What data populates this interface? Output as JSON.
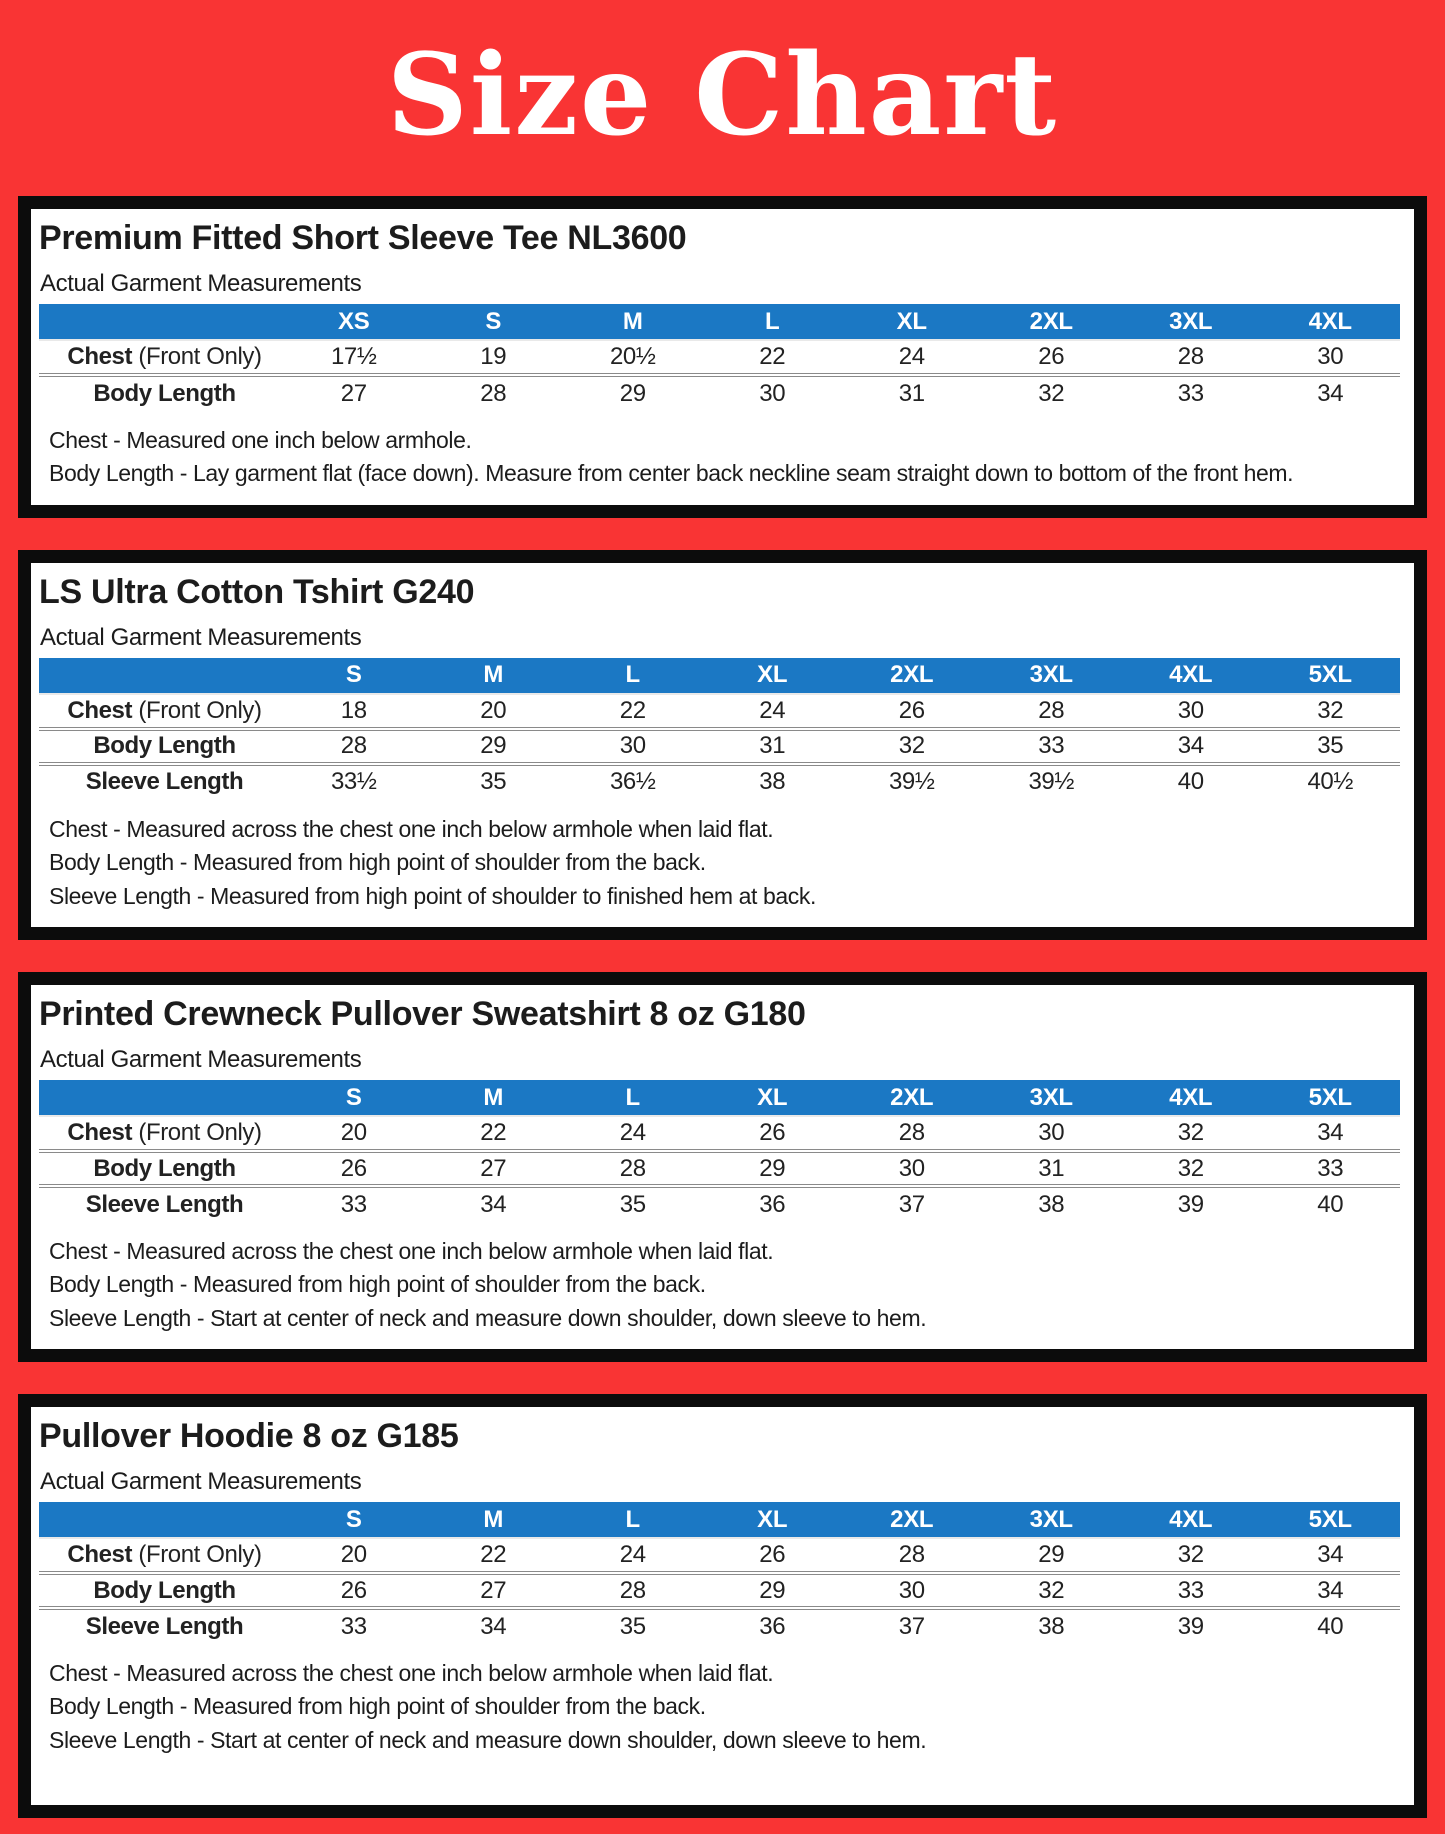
{
  "page": {
    "title": "Size Chart",
    "colors": {
      "background": "#F93434",
      "panel_border": "#0C0C0C",
      "header_bar": "#1B78C4",
      "title_text": "#FFFFFF"
    }
  },
  "panels": [
    {
      "title": "Premium Fitted Short Sleeve Tee NL3600",
      "subtitle": "Actual Garment Measurements",
      "sizes": [
        "XS",
        "S",
        "M",
        "L",
        "XL",
        "2XL",
        "3XL",
        "4XL"
      ],
      "rows": [
        {
          "label": "Chest",
          "label_note": "(Front Only)",
          "values": [
            "17½",
            "19",
            "20½",
            "22",
            "24",
            "26",
            "28",
            "30"
          ]
        },
        {
          "label": "Body Length",
          "label_note": "",
          "values": [
            "27",
            "28",
            "29",
            "30",
            "31",
            "32",
            "33",
            "34"
          ]
        }
      ],
      "notes": [
        "Chest - Measured one inch below armhole.",
        "Body Length - Lay garment flat (face down). Measure from center back neckline seam straight down to bottom of the front hem."
      ]
    },
    {
      "title": "LS Ultra Cotton Tshirt G240",
      "subtitle": "Actual Garment Measurements",
      "sizes": [
        "S",
        "M",
        "L",
        "XL",
        "2XL",
        "3XL",
        "4XL",
        "5XL"
      ],
      "rows": [
        {
          "label": "Chest",
          "label_note": "(Front Only)",
          "values": [
            "18",
            "20",
            "22",
            "24",
            "26",
            "28",
            "30",
            "32"
          ]
        },
        {
          "label": "Body Length",
          "label_note": "",
          "values": [
            "28",
            "29",
            "30",
            "31",
            "32",
            "33",
            "34",
            "35"
          ]
        },
        {
          "label": "Sleeve Length",
          "label_note": "",
          "values": [
            "33½",
            "35",
            "36½",
            "38",
            "39½",
            "39½",
            "40",
            "40½"
          ]
        }
      ],
      "notes": [
        "Chest - Measured across the chest one inch below armhole when laid flat.",
        "Body Length - Measured from high point of shoulder from the back.",
        "Sleeve Length - Measured from high point of shoulder to finished hem at back."
      ]
    },
    {
      "title": "Printed Crewneck Pullover Sweatshirt 8 oz G180",
      "subtitle": "Actual Garment Measurements",
      "sizes": [
        "S",
        "M",
        "L",
        "XL",
        "2XL",
        "3XL",
        "4XL",
        "5XL"
      ],
      "rows": [
        {
          "label": "Chest",
          "label_note": "(Front Only)",
          "values": [
            "20",
            "22",
            "24",
            "26",
            "28",
            "30",
            "32",
            "34"
          ]
        },
        {
          "label": "Body Length",
          "label_note": "",
          "values": [
            "26",
            "27",
            "28",
            "29",
            "30",
            "31",
            "32",
            "33"
          ]
        },
        {
          "label": "Sleeve Length",
          "label_note": "",
          "values": [
            "33",
            "34",
            "35",
            "36",
            "37",
            "38",
            "39",
            "40"
          ]
        }
      ],
      "notes": [
        "Chest - Measured across the chest one inch below armhole when laid flat.",
        "Body Length - Measured from high point of shoulder from the back.",
        "Sleeve Length - Start at center of neck and measure down shoulder, down sleeve to hem."
      ]
    },
    {
      "title": "Pullover Hoodie 8 oz G185",
      "subtitle": "Actual Garment Measurements",
      "sizes": [
        "S",
        "M",
        "L",
        "XL",
        "2XL",
        "3XL",
        "4XL",
        "5XL"
      ],
      "rows": [
        {
          "label": "Chest",
          "label_note": "(Front Only)",
          "values": [
            "20",
            "22",
            "24",
            "26",
            "28",
            "29",
            "32",
            "34"
          ]
        },
        {
          "label": "Body Length",
          "label_note": "",
          "values": [
            "26",
            "27",
            "28",
            "29",
            "30",
            "32",
            "33",
            "34"
          ]
        },
        {
          "label": "Sleeve Length",
          "label_note": "",
          "values": [
            "33",
            "34",
            "35",
            "36",
            "37",
            "38",
            "39",
            "40"
          ]
        }
      ],
      "notes": [
        "Chest - Measured across the chest one inch below armhole when laid flat.",
        "Body Length - Measured from high point of shoulder from the back.",
        "Sleeve Length - Start at center of neck and measure down shoulder, down sleeve to hem."
      ]
    }
  ]
}
